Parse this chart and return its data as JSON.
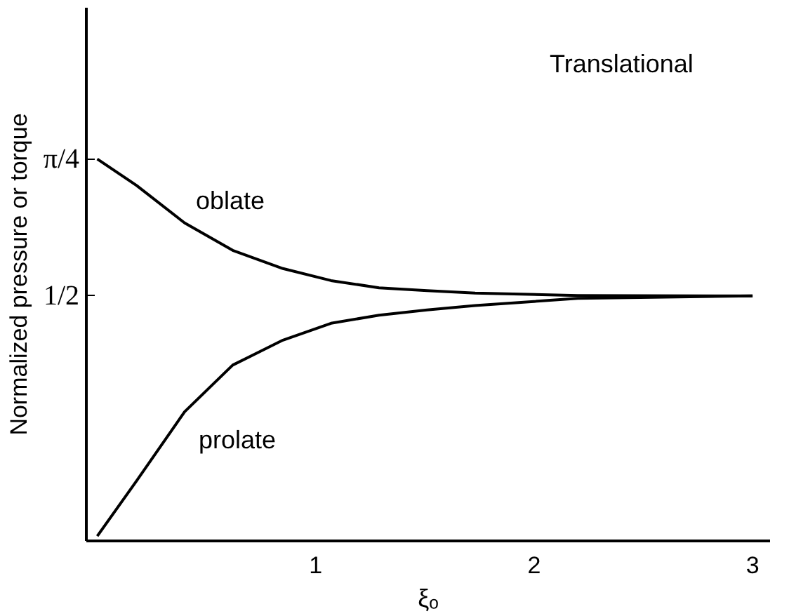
{
  "chart_data": {
    "type": "line",
    "title": "Translational",
    "xlabel": "ξₒ",
    "ylabel": "Normalized pressure or torque",
    "x": [
      0,
      0.18,
      0.4,
      0.62,
      0.85,
      1.07,
      1.29,
      1.51,
      1.73,
      2.2,
      3
    ],
    "series": [
      {
        "name": "oblate",
        "color": "#000000",
        "values": [
          0.785,
          0.73,
          0.652,
          0.595,
          0.557,
          0.532,
          0.517,
          0.511,
          0.506,
          0.501,
          0.5
        ]
      },
      {
        "name": "prolate",
        "color": "#000000",
        "values": [
          0,
          0.115,
          0.259,
          0.356,
          0.408,
          0.443,
          0.46,
          0.471,
          0.48,
          0.495,
          0.5
        ]
      }
    ],
    "xlim": [
      -0.05,
      3.08
    ],
    "ylim": [
      -0.01,
      1.1
    ],
    "xticks": [
      1,
      2,
      3
    ],
    "yticks": [
      {
        "value": 0.5,
        "label": "1/2"
      },
      {
        "value": 0.785,
        "label": "π/4"
      }
    ],
    "grid": false,
    "line_style": "solid",
    "marker": "none"
  }
}
